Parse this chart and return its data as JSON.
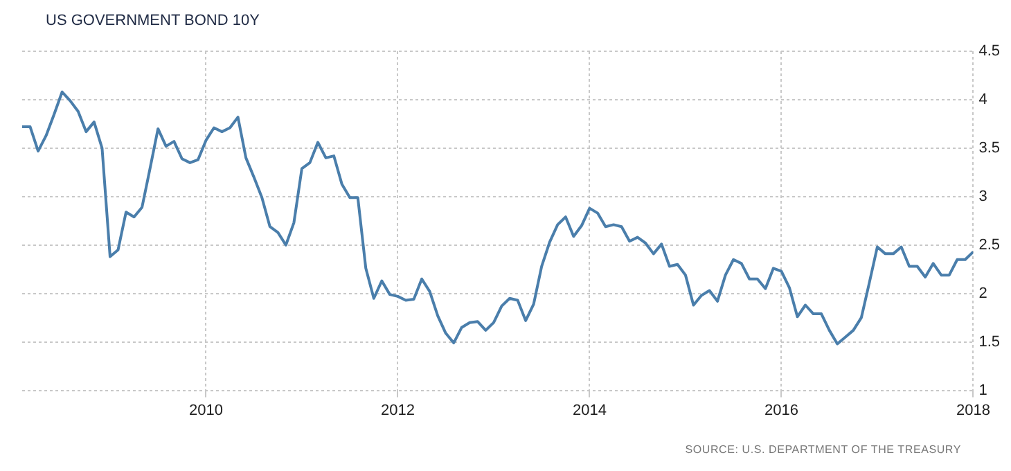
{
  "chart_data": {
    "type": "line",
    "title": "US GOVERNMENT BOND 10Y",
    "annotations": [
      "SOURCE: U.S. DEPARTMENT OF THE TREASURY"
    ],
    "x": [
      "2008-02",
      "2008-03",
      "2008-04",
      "2008-05",
      "2008-06",
      "2008-07",
      "2008-08",
      "2008-09",
      "2008-10",
      "2008-11",
      "2008-12",
      "2009-01",
      "2009-02",
      "2009-03",
      "2009-04",
      "2009-05",
      "2009-06",
      "2009-07",
      "2009-08",
      "2009-09",
      "2009-10",
      "2009-11",
      "2009-12",
      "2010-01",
      "2010-02",
      "2010-03",
      "2010-04",
      "2010-05",
      "2010-06",
      "2010-07",
      "2010-08",
      "2010-09",
      "2010-10",
      "2010-11",
      "2010-12",
      "2011-01",
      "2011-02",
      "2011-03",
      "2011-04",
      "2011-05",
      "2011-06",
      "2011-07",
      "2011-08",
      "2011-09",
      "2011-10",
      "2011-11",
      "2011-12",
      "2012-01",
      "2012-02",
      "2012-03",
      "2012-04",
      "2012-05",
      "2012-06",
      "2012-07",
      "2012-08",
      "2012-09",
      "2012-10",
      "2012-11",
      "2012-12",
      "2013-01",
      "2013-02",
      "2013-03",
      "2013-04",
      "2013-05",
      "2013-06",
      "2013-07",
      "2013-08",
      "2013-09",
      "2013-10",
      "2013-11",
      "2013-12",
      "2014-01",
      "2014-02",
      "2014-03",
      "2014-04",
      "2014-05",
      "2014-06",
      "2014-07",
      "2014-08",
      "2014-09",
      "2014-10",
      "2014-11",
      "2014-12",
      "2015-01",
      "2015-02",
      "2015-03",
      "2015-04",
      "2015-05",
      "2015-06",
      "2015-07",
      "2015-08",
      "2015-09",
      "2015-10",
      "2015-11",
      "2015-12",
      "2016-01",
      "2016-02",
      "2016-03",
      "2016-04",
      "2016-05",
      "2016-06",
      "2016-07",
      "2016-08",
      "2016-09",
      "2016-10",
      "2016-11",
      "2016-12",
      "2017-01",
      "2017-02",
      "2017-03",
      "2017-04",
      "2017-05",
      "2017-06",
      "2017-07",
      "2017-08",
      "2017-09",
      "2017-10",
      "2017-11",
      "2017-12",
      "2018-01"
    ],
    "series": [
      {
        "color": "#4a7eab",
        "values": [
          3.72,
          3.72,
          3.47,
          3.63,
          3.85,
          4.08,
          3.99,
          3.88,
          3.67,
          3.77,
          3.5,
          2.38,
          2.45,
          2.84,
          2.79,
          2.89,
          3.29,
          3.7,
          3.52,
          3.57,
          3.39,
          3.35,
          3.38,
          3.58,
          3.71,
          3.67,
          3.71,
          3.82,
          3.4,
          3.2,
          2.99,
          2.69,
          2.63,
          2.5,
          2.73,
          3.29,
          3.35,
          3.56,
          3.4,
          3.42,
          3.13,
          2.99,
          2.99,
          2.26,
          1.95,
          2.13,
          1.99,
          1.97,
          1.93,
          1.94,
          2.15,
          2.02,
          1.77,
          1.59,
          1.49,
          1.65,
          1.7,
          1.71,
          1.62,
          1.7,
          1.87,
          1.95,
          1.93,
          1.72,
          1.89,
          2.28,
          2.53,
          2.71,
          2.79,
          2.59,
          2.7,
          2.88,
          2.83,
          2.69,
          2.71,
          2.69,
          2.54,
          2.58,
          2.52,
          2.41,
          2.51,
          2.28,
          2.3,
          2.19,
          1.88,
          1.98,
          2.03,
          1.92,
          2.19,
          2.35,
          2.31,
          2.15,
          2.15,
          2.05,
          2.26,
          2.23,
          2.06,
          1.76,
          1.88,
          1.79,
          1.79,
          1.62,
          1.48,
          1.55,
          1.62,
          1.75,
          2.11,
          2.48,
          2.41,
          2.41,
          2.48,
          2.28,
          2.28,
          2.17,
          2.31,
          2.19,
          2.19,
          2.35,
          2.35,
          2.43
        ]
      }
    ],
    "xlim": [
      "2008-02",
      "2018-01"
    ],
    "xticks": [
      "2010",
      "2012",
      "2014",
      "2016",
      "2018"
    ],
    "ylim": [
      1,
      4.5
    ],
    "yticks": [
      1,
      1.5,
      2,
      2.5,
      3,
      3.5,
      4,
      4.5
    ],
    "grid": true,
    "marker": "none",
    "line_style": "solid",
    "legend": false
  }
}
